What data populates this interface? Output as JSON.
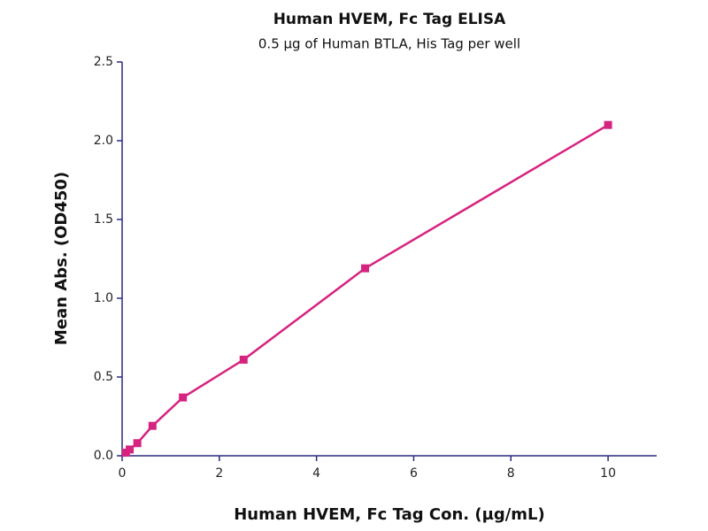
{
  "chart_data": {
    "type": "scatter",
    "title": "Human HVEM, Fc Tag ELISA",
    "subtitle": "0.5 µg of Human BTLA, His Tag per well",
    "x_label": "Human HVEM, Fc Tag Con. (µg/mL)",
    "y_label": "Mean Abs. (OD450)",
    "x": [
      0.078,
      0.156,
      0.3125,
      0.625,
      1.25,
      2.5,
      5,
      10
    ],
    "series": [
      {
        "color": "#d6237f",
        "values": [
          0.02,
          0.04,
          0.08,
          0.19,
          0.37,
          0.61,
          1.19,
          2.1
        ]
      }
    ],
    "xlim": [
      0,
      11
    ],
    "xticks": [
      0,
      2,
      4,
      6,
      8,
      10
    ],
    "ylim": [
      0,
      2.5
    ],
    "yticks": [
      {
        "value": 0,
        "label": "0.0"
      },
      {
        "value": 0.5,
        "label": "0.5"
      },
      {
        "value": 1,
        "label": "1.0"
      },
      {
        "value": 1.5,
        "label": "1.5"
      },
      {
        "value": 2,
        "label": "2.0"
      },
      {
        "value": 2.5,
        "label": "2.5"
      }
    ]
  }
}
